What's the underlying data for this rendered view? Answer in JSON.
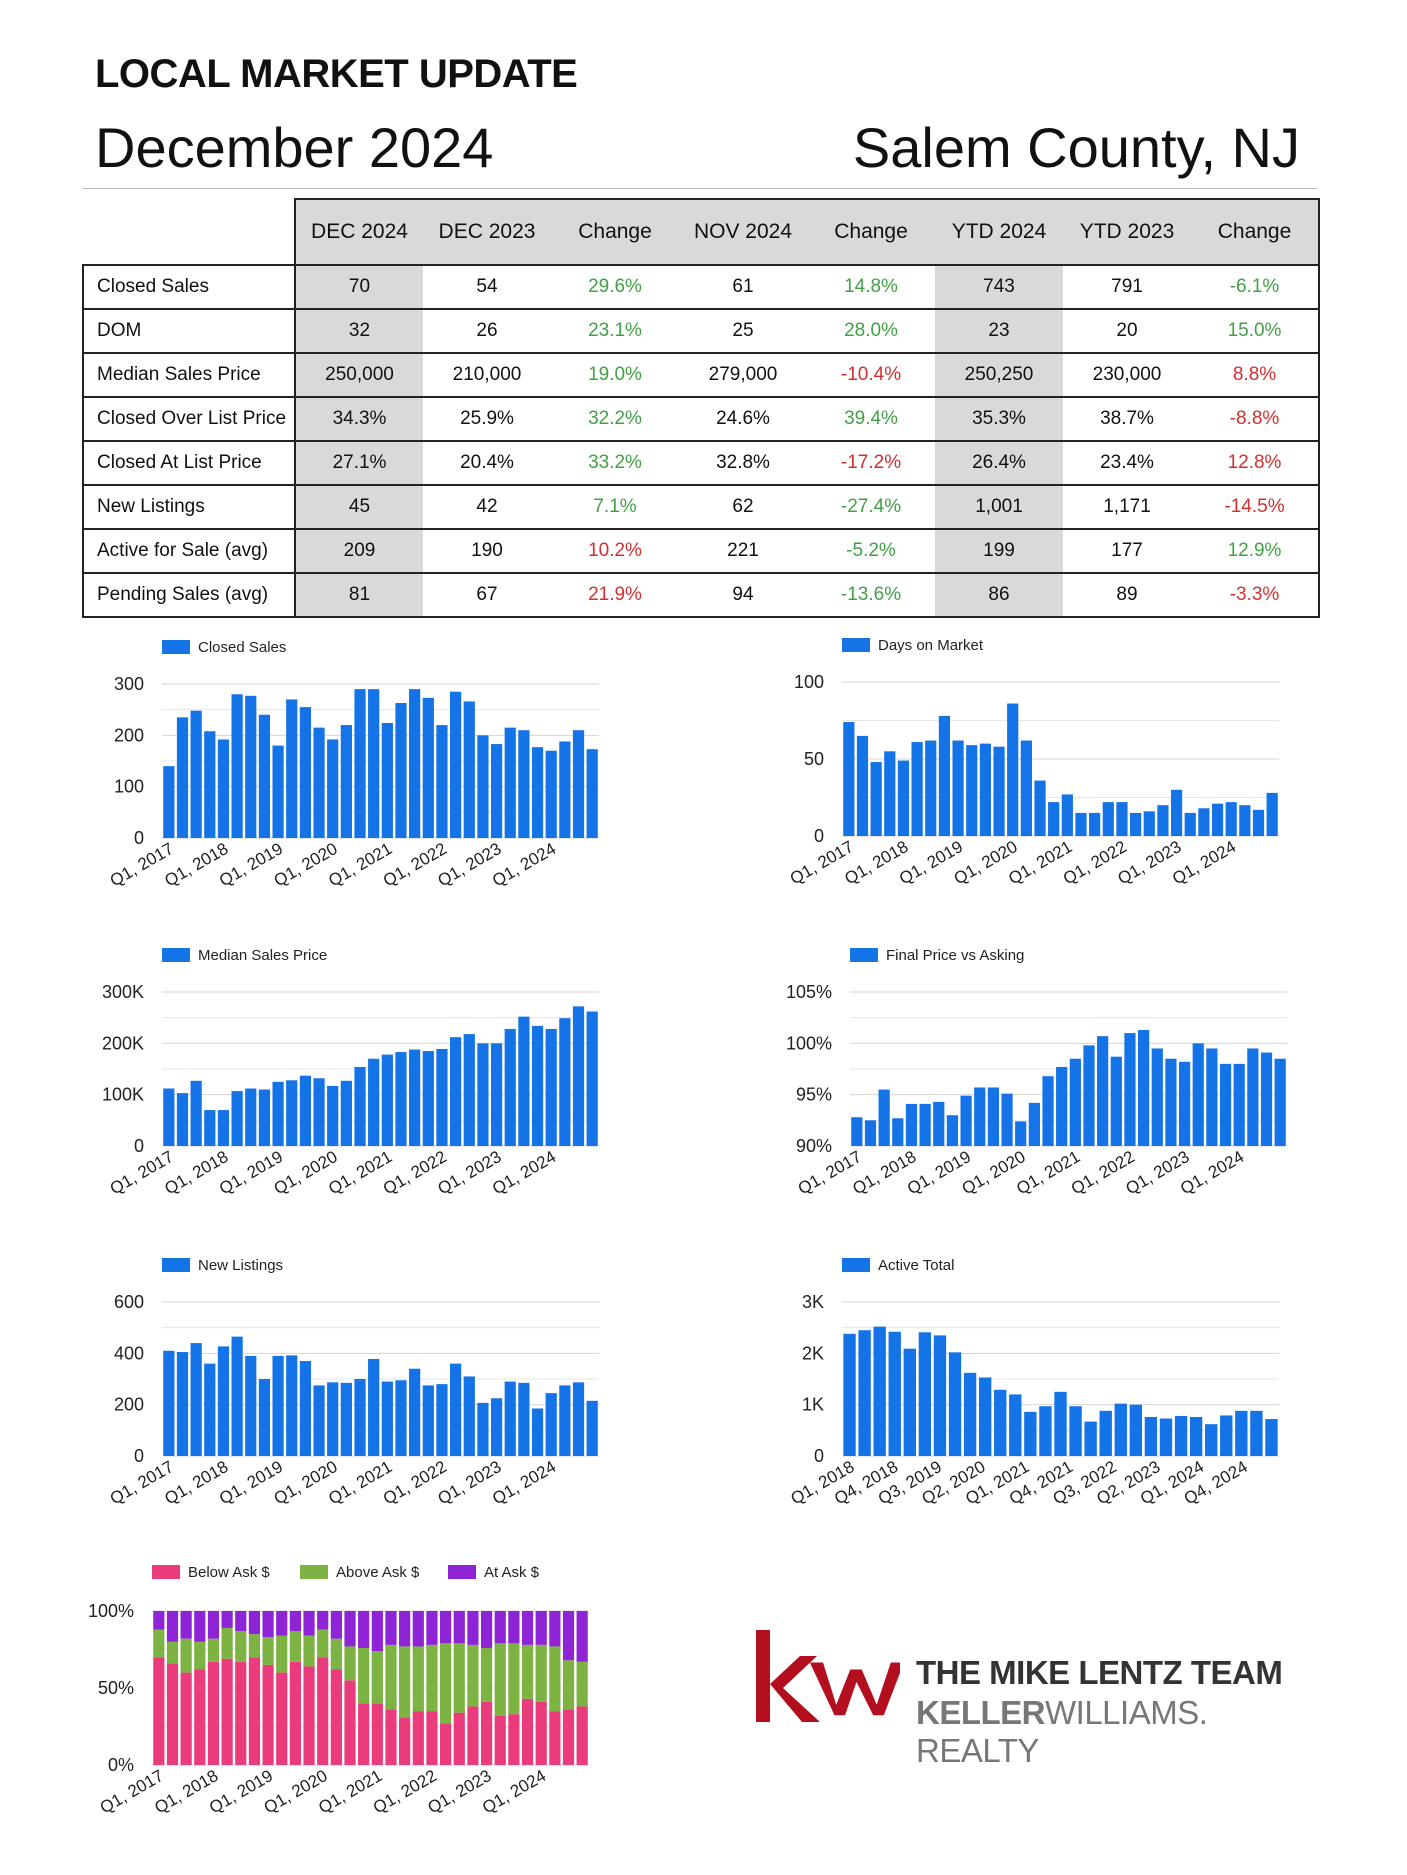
{
  "header": {
    "title": "LOCAL MARKET UPDATE",
    "date": "December 2024",
    "county": "Salem County, NJ"
  },
  "table": {
    "columns": [
      "DEC 2024",
      "DEC 2023",
      "Change",
      "NOV 2024",
      "Change",
      "YTD 2024",
      "YTD 2023",
      "Change"
    ],
    "rows": [
      {
        "label": "Closed Sales",
        "values": [
          "70",
          "54",
          "29.6%",
          "61",
          "14.8%",
          "743",
          "791",
          "-6.1%"
        ]
      },
      {
        "label": "DOM",
        "values": [
          "32",
          "26",
          "23.1%",
          "25",
          "28.0%",
          "23",
          "20",
          "15.0%"
        ]
      },
      {
        "label": "Median Sales Price",
        "values": [
          "250,000",
          "210,000",
          "19.0%",
          "279,000",
          "-10.4%",
          "250,250",
          "230,000",
          "8.8%"
        ]
      },
      {
        "label": "Closed Over List Price",
        "values": [
          "34.3%",
          "25.9%",
          "32.2%",
          "24.6%",
          "39.4%",
          "35.3%",
          "38.7%",
          "-8.8%"
        ]
      },
      {
        "label": "Closed At List Price",
        "values": [
          "27.1%",
          "20.4%",
          "33.2%",
          "32.8%",
          "-17.2%",
          "26.4%",
          "23.4%",
          "12.8%"
        ]
      },
      {
        "label": "New Listings",
        "values": [
          "45",
          "42",
          "7.1%",
          "62",
          "-27.4%",
          "1,001",
          "1,171",
          "-14.5%"
        ]
      },
      {
        "label": "Active for Sale (avg)",
        "values": [
          "209",
          "190",
          "10.2%",
          "221",
          "-5.2%",
          "199",
          "177",
          "12.9%"
        ]
      },
      {
        "label": "Pending Sales (avg)",
        "values": [
          "81",
          "67",
          "21.9%",
          "94",
          "-13.6%",
          "86",
          "89",
          "-3.3%"
        ]
      }
    ],
    "change_colors": [
      "pos",
      "pos",
      "pos",
      "pos",
      "pos",
      "pos",
      "pos",
      "neg",
      "neg",
      "pos",
      "pos",
      "neg",
      "pos",
      "neg",
      "neg",
      "pos",
      "pos",
      "neg",
      "neg",
      "pos",
      "pos",
      "neg",
      "pos",
      "neg"
    ],
    "positive_color": "#43a047",
    "negative_color": "#d32f2f"
  },
  "chart_data": [
    {
      "type": "bar",
      "legend": "Closed Sales",
      "color": "#1473e6",
      "x_labels": [
        "Q1, 2017",
        "Q1, 2018",
        "Q1, 2019",
        "Q1, 2020",
        "Q1, 2021",
        "Q1, 2022",
        "Q1, 2023",
        "Q1, 2024"
      ],
      "yticks": [
        "0",
        "100",
        "200",
        "300"
      ],
      "ylim": [
        0,
        300
      ],
      "values": [
        140,
        235,
        248,
        208,
        192,
        280,
        277,
        240,
        180,
        270,
        255,
        215,
        192,
        220,
        290,
        290,
        224,
        263,
        290,
        273,
        220,
        285,
        266,
        200,
        183,
        215,
        210,
        177,
        170,
        188,
        210,
        173
      ]
    },
    {
      "type": "bar",
      "legend": "Days on Market",
      "color": "#1473e6",
      "x_labels": [
        "Q1, 2017",
        "Q1, 2018",
        "Q1, 2019",
        "Q1, 2020",
        "Q1, 2021",
        "Q1, 2022",
        "Q1, 2023",
        "Q1, 2024"
      ],
      "yticks": [
        "0",
        "50",
        "100"
      ],
      "ylim": [
        0,
        100
      ],
      "values": [
        74,
        65,
        48,
        55,
        49,
        61,
        62,
        78,
        62,
        59,
        60,
        58,
        86,
        62,
        36,
        22,
        27,
        15,
        15,
        22,
        22,
        15,
        16,
        20,
        30,
        15,
        18,
        21,
        22,
        20,
        17,
        28
      ]
    },
    {
      "type": "bar",
      "legend": "Median Sales Price",
      "color": "#1473e6",
      "x_labels": [
        "Q1, 2017",
        "Q1, 2018",
        "Q1, 2019",
        "Q1, 2020",
        "Q1, 2021",
        "Q1, 2022",
        "Q1, 2023",
        "Q1, 2024"
      ],
      "yticks": [
        "0",
        "100K",
        "200K",
        "300K"
      ],
      "ylim": [
        0,
        300000
      ],
      "values": [
        112000,
        103000,
        127000,
        70000,
        70000,
        107000,
        112000,
        110000,
        125000,
        128000,
        137000,
        132000,
        117000,
        127000,
        154000,
        170000,
        178000,
        183000,
        188000,
        185000,
        189000,
        212000,
        218000,
        200000,
        200000,
        228000,
        252000,
        234000,
        228000,
        249000,
        272000,
        262000
      ]
    },
    {
      "type": "bar",
      "legend": "Final Price vs Asking",
      "color": "#1473e6",
      "x_labels": [
        "Q1, 2017",
        "Q1, 2018",
        "Q1, 2019",
        "Q1, 2020",
        "Q1, 2021",
        "Q1, 2022",
        "Q1, 2023",
        "Q1, 2024"
      ],
      "yticks": [
        "90%",
        "95%",
        "100%",
        "105%"
      ],
      "ylim": [
        90,
        105
      ],
      "values": [
        92.8,
        92.5,
        95.5,
        92.7,
        94.1,
        94.1,
        94.3,
        93.0,
        94.9,
        95.7,
        95.7,
        95.1,
        92.4,
        94.2,
        96.8,
        97.7,
        98.5,
        99.8,
        100.7,
        98.7,
        101.0,
        101.3,
        99.5,
        98.5,
        98.2,
        100.0,
        99.5,
        98.0,
        98.0,
        99.5,
        99.1,
        98.5
      ]
    },
    {
      "type": "bar",
      "legend": "New Listings",
      "color": "#1473e6",
      "x_labels": [
        "Q1, 2017",
        "Q1, 2018",
        "Q1, 2019",
        "Q1, 2020",
        "Q1, 2021",
        "Q1, 2022",
        "Q1, 2023",
        "Q1, 2024"
      ],
      "yticks": [
        "0",
        "200",
        "400",
        "600"
      ],
      "ylim": [
        0,
        600
      ],
      "values": [
        410,
        405,
        440,
        360,
        427,
        465,
        390,
        300,
        390,
        392,
        370,
        275,
        287,
        285,
        300,
        378,
        290,
        295,
        340,
        275,
        280,
        360,
        310,
        207,
        225,
        290,
        285,
        185,
        245,
        275,
        287,
        215
      ]
    },
    {
      "type": "bar",
      "legend": "Active Total",
      "color": "#1473e6",
      "x_labels": [
        "Q1, 2018",
        "Q4, 2018",
        "Q3, 2019",
        "Q2, 2020",
        "Q1, 2021",
        "Q4, 2021",
        "Q3, 2022",
        "Q2, 2023",
        "Q1, 2024",
        "Q4, 2024"
      ],
      "yticks": [
        "0",
        "1K",
        "2K",
        "3K"
      ],
      "ylim": [
        0,
        3000
      ],
      "values": [
        2380,
        2450,
        2520,
        2420,
        2090,
        2410,
        2350,
        2020,
        1620,
        1530,
        1290,
        1200,
        860,
        970,
        1250,
        970,
        670,
        880,
        1020,
        1000,
        760,
        730,
        780,
        760,
        620,
        790,
        880,
        880,
        720
      ]
    },
    {
      "type": "bar",
      "stacked": true,
      "legend_items": [
        {
          "name": "Below Ask $",
          "color": "#ea3c7c"
        },
        {
          "name": "Above Ask $",
          "color": "#7cb342"
        },
        {
          "name": "At Ask $",
          "color": "#8e24d6"
        }
      ],
      "x_labels": [
        "Q1, 2017",
        "Q1, 2018",
        "Q1, 2019",
        "Q1, 2020",
        "Q1, 2021",
        "Q1, 2022",
        "Q1, 2023",
        "Q1, 2024"
      ],
      "yticks": [
        "0%",
        "50%",
        "100%"
      ],
      "ylim": [
        0,
        100
      ],
      "series": [
        {
          "name": "Below Ask $",
          "values": [
            70,
            66,
            60,
            62,
            67,
            69,
            67,
            70,
            65,
            60,
            67,
            64,
            70,
            62,
            55,
            40,
            40,
            36,
            31,
            35,
            35,
            27,
            34,
            38,
            41,
            32,
            33,
            43,
            41,
            35,
            36,
            38
          ]
        },
        {
          "name": "Above Ask $",
          "values": [
            18,
            14,
            22,
            18,
            15,
            20,
            20,
            15,
            18,
            24,
            20,
            20,
            18,
            20,
            22,
            36,
            34,
            42,
            46,
            42,
            43,
            52,
            45,
            40,
            35,
            47,
            46,
            35,
            37,
            42,
            32,
            29
          ]
        },
        {
          "name": "At Ask $",
          "values": [
            12,
            20,
            18,
            20,
            18,
            11,
            13,
            15,
            17,
            16,
            13,
            16,
            12,
            18,
            23,
            24,
            26,
            22,
            23,
            23,
            22,
            21,
            21,
            22,
            24,
            21,
            21,
            22,
            22,
            23,
            32,
            33
          ]
        }
      ]
    }
  ],
  "logo": {
    "mark": "kw",
    "team": "THE MIKE LENTZ TEAM",
    "brand_bold": "KELLER",
    "brand_light": "WILLIAMS.",
    "brand_tail": " REALTY",
    "colors": {
      "mark": "#b40f1e",
      "text": "#333333"
    }
  }
}
